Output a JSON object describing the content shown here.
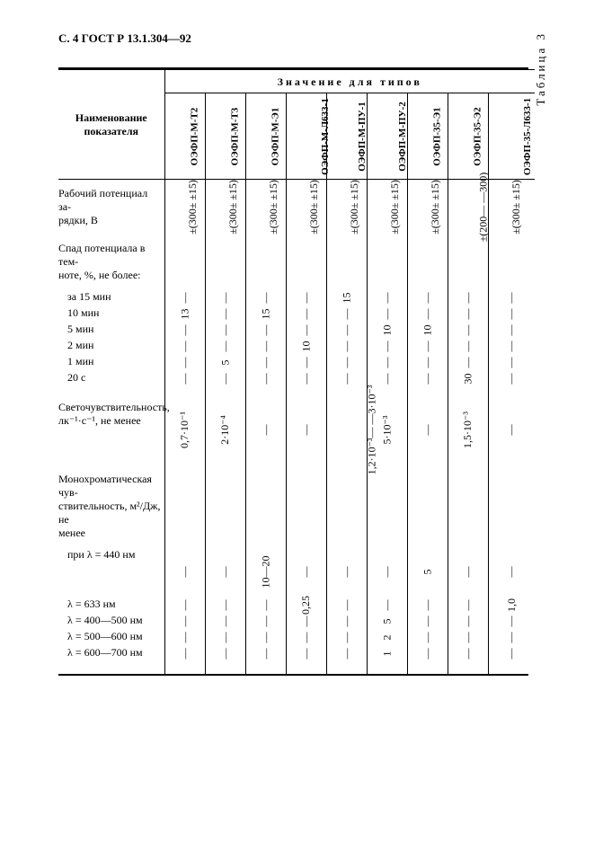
{
  "header": "С. 4 ГОСТ Р 13.1.304—92",
  "table_title": "Таблица 3",
  "stub_header": "Наименование\nпоказателя",
  "spanning_header": "Значение для типов",
  "types": [
    "ОЭФП-М-Т2",
    "ОЭФП-М-Т3",
    "ОЭФП-М-Э1",
    "ОЭФП-М-Л633-1",
    "ОЭФП-М-ПУ-1",
    "ОЭФП-М-ПУ-2",
    "ОЭФП-35-Э1",
    "ОЭФП-35-Э2",
    "ОЭФП-35-Л633-1"
  ],
  "rows": {
    "potential": {
      "label": "Рабочий потенциал за-\nрядки, В",
      "vals": [
        "±(300±\n±15)",
        "±(300±\n±15)",
        "±(300±\n±15)",
        "±(300±\n±15)",
        "±(300±\n±15)",
        "±(300±\n±15)",
        "±(300±\n±15)",
        "±(200—\n—300)",
        "±(300±\n±15)"
      ]
    },
    "decay": {
      "label": "Спад потенциала в тем-\nноте, %, не более:",
      "subrows": [
        {
          "label": "за 15 мин",
          "vals": [
            "—",
            "—",
            "—",
            "—",
            "15",
            "—",
            "—",
            "—",
            "—"
          ]
        },
        {
          "label": "10 мин",
          "vals": [
            "13",
            "—",
            "15",
            "—",
            "—",
            "—",
            "—",
            "—",
            "—"
          ]
        },
        {
          "label": "5 мин",
          "vals": [
            "—",
            "—",
            "—",
            "—",
            "—",
            "10",
            "10",
            "—",
            "—"
          ]
        },
        {
          "label": "2 мин",
          "vals": [
            "—",
            "—",
            "—",
            "10",
            "—",
            "—",
            "—",
            "—",
            "—"
          ]
        },
        {
          "label": "1 мин",
          "vals": [
            "—",
            "5",
            "—",
            "—",
            "—",
            "—",
            "—",
            "—",
            "—"
          ]
        },
        {
          "label": "20 с",
          "vals": [
            "—",
            "—",
            "—",
            "—",
            "—",
            "—",
            "—",
            "30",
            "—"
          ]
        }
      ]
    },
    "photo": {
      "label": "Светочувствительность,\nлк⁻¹·с⁻¹, не менее",
      "vals": [
        "0,7·10⁻¹",
        "2·10⁻⁴",
        "—",
        "—",
        "1,2·10⁻³—\n—3·10⁻³",
        "5·10⁻³",
        "—",
        "1,5·10⁻³",
        "—"
      ]
    },
    "mono": {
      "label": "Монохроматическая чув-\nствительность, м²/Дж, не\nменее",
      "subrows": [
        {
          "label": "при λ = 440 нм",
          "vals": [
            "—",
            "—",
            "10—20",
            "—",
            "—",
            "—",
            "5",
            "—",
            "—"
          ]
        },
        {
          "label": "λ = 633 нм",
          "vals": [
            "—",
            "—",
            "—",
            "0,25",
            "—",
            "—",
            "—",
            "—",
            "1,0"
          ]
        },
        {
          "label": "λ = 400—500 нм",
          "vals": [
            "—",
            "—",
            "—",
            "—",
            "—",
            "5",
            "—",
            "—",
            "—"
          ]
        },
        {
          "label": "λ = 500—600 нм",
          "vals": [
            "—",
            "—",
            "—",
            "—",
            "—",
            "2",
            "—",
            "—",
            "—"
          ]
        },
        {
          "label": "λ = 600—700 нм",
          "vals": [
            "—",
            "—",
            "—",
            "—",
            "—",
            "1",
            "—",
            "—",
            "—"
          ]
        }
      ]
    }
  },
  "colors": {
    "fg": "#000000",
    "bg": "#ffffff"
  },
  "font": {
    "family": "Times New Roman, serif",
    "base_size_pt": 10
  }
}
